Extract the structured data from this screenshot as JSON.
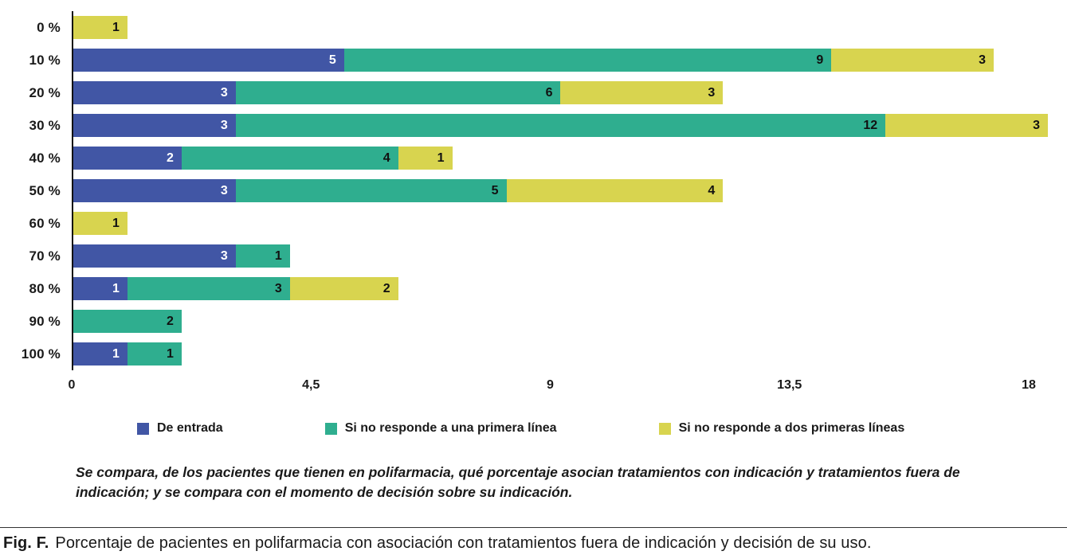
{
  "chart_data": {
    "type": "bar",
    "orientation": "horizontal",
    "stacked": true,
    "grid": false,
    "legend_position": "bottom",
    "categories": [
      "0 %",
      "10 %",
      "20 %",
      "30 %",
      "40 %",
      "50 %",
      "60 %",
      "70 %",
      "80 %",
      "90 %",
      "100 %"
    ],
    "series": [
      {
        "key": "de-entrada",
        "name": "De entrada",
        "color": "#4156a5",
        "label_color": "#ffffff",
        "values": [
          0,
          5,
          3,
          3,
          2,
          3,
          0,
          3,
          1,
          0,
          1
        ]
      },
      {
        "key": "si-no-responde-primera-linea",
        "name": "Si no responde a una primera línea",
        "color": "#2fae8f",
        "label_color": "#111111",
        "values": [
          0,
          9,
          6,
          12,
          4,
          5,
          0,
          1,
          3,
          2,
          1
        ]
      },
      {
        "key": "si-no-responde-dos-primeras-lineas",
        "name": "Si no responde a dos primeras líneas",
        "color": "#d8d44f",
        "label_color": "#111111",
        "values": [
          1,
          3,
          3,
          3,
          1,
          4,
          1,
          0,
          2,
          0,
          0
        ]
      }
    ],
    "xlim": [
      0,
      18
    ],
    "x_ticks": [
      "0",
      "4,5",
      "9",
      "13,5",
      "18"
    ]
  },
  "note": "Se compara, de los pacientes que tienen en polifarmacia, qué porcentaje asocian tratamientos con indicación y tratamientos fuera de indicación; y se compara con el momento de decisión sobre su indicación.",
  "figure_caption": {
    "label": "Fig. F.",
    "text": "Porcentaje de pacientes en polifarmacia con asociación con tratamientos fuera de indicación y decisión de su uso."
  }
}
